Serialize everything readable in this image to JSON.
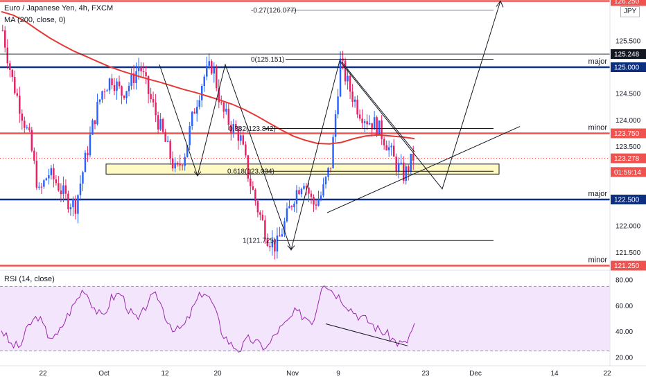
{
  "legend": {
    "symbol": "Euro / Japanese Yen, 4h, FXCM",
    "ma": "MA (200, close, 0)",
    "rsi": "RSI (14, close)",
    "currency_badge": "JPY"
  },
  "colors": {
    "up": "#2962ff",
    "down": "#e91e63",
    "ma": "#e53935",
    "major": "#0d2f80",
    "minor": "#ef5350",
    "rsi_line": "#9c27b0",
    "rsi_fill": "#f3e5fb",
    "support_box": "#fff9c4"
  },
  "chart_data": {
    "type": "candlestick",
    "price_axis": {
      "min": 121.0,
      "max": 126.25,
      "ticks": [
        "125.500",
        "125.000",
        "124.500",
        "124.000",
        "123.500",
        "123.000",
        "122.500",
        "122.000",
        "121.500"
      ]
    },
    "x_axis_ticks": [
      "22",
      "Oct",
      "12",
      "20",
      "Nov",
      "9",
      "23",
      "Dec",
      "14",
      "22"
    ],
    "price_tags": [
      {
        "value": "126.250",
        "color": "#ef5350"
      },
      {
        "value": "125.248",
        "color": "#131722"
      },
      {
        "value": "125.000",
        "color": "#0d2f80"
      },
      {
        "value": "123.750",
        "color": "#ef5350"
      },
      {
        "value": "123.278",
        "color": "#ef5350"
      },
      {
        "value": "01:59:14",
        "color": "#ef5350"
      },
      {
        "value": "122.500",
        "color": "#0d2f80"
      },
      {
        "value": "121.250",
        "color": "#ef5350"
      }
    ],
    "levels": [
      {
        "price": 125.0,
        "type": "major",
        "label": "major"
      },
      {
        "price": 123.75,
        "type": "minor",
        "label": "minor"
      },
      {
        "price": 122.5,
        "type": "major",
        "label": "major"
      },
      {
        "price": 121.25,
        "type": "minor",
        "label": "minor"
      },
      {
        "price": 126.25,
        "type": "minor",
        "label": ""
      }
    ],
    "fib_labels": [
      {
        "text": "-0.27(126.077)",
        "price": 126.077
      },
      {
        "text": "0(125.151)",
        "price": 125.151
      },
      {
        "text": "0.382(123.842)",
        "price": 123.842
      },
      {
        "text": "0.618(123.034)",
        "price": 123.034
      },
      {
        "text": "1(121.725)",
        "price": 121.725
      }
    ],
    "ma_series": [
      126.05,
      125.98,
      125.86,
      125.7,
      125.55,
      125.42,
      125.3,
      125.2,
      125.1,
      125.0,
      124.92,
      124.85,
      124.78,
      124.72,
      124.65,
      124.58,
      124.52,
      124.45,
      124.38,
      124.3,
      124.2,
      124.08,
      123.95,
      123.82,
      123.7,
      123.62,
      123.56,
      123.55,
      123.58,
      123.65,
      123.7,
      123.72,
      123.7,
      123.68,
      123.65
    ],
    "price_path": [
      125.7,
      124.8,
      124.2,
      123.6,
      122.6,
      123.0,
      122.8,
      122.5,
      122.4,
      123.2,
      124.0,
      124.6,
      124.8,
      124.5,
      124.7,
      125.05,
      124.5,
      124.0,
      123.5,
      123.0,
      123.4,
      124.2,
      124.8,
      125.05,
      124.2,
      123.9,
      123.7,
      122.9,
      122.3,
      121.8,
      121.6,
      122.1,
      122.6,
      122.9,
      122.4,
      122.6,
      123.2,
      125.1,
      124.6,
      124.2,
      124.0,
      123.9,
      123.6,
      123.2,
      122.95,
      123.3
    ],
    "rsi_axis": {
      "ticks": [
        "80.00",
        "60.00",
        "40.00",
        "20.00"
      ],
      "min": 15,
      "max": 85
    },
    "rsi_series": [
      42,
      30,
      28,
      45,
      52,
      38,
      35,
      50,
      62,
      74,
      60,
      50,
      66,
      70,
      55,
      48,
      64,
      68,
      50,
      40,
      45,
      60,
      72,
      62,
      40,
      30,
      26,
      35,
      30,
      28,
      40,
      46,
      55,
      52,
      48,
      80,
      72,
      66,
      58,
      52,
      48,
      42,
      38,
      32,
      30,
      45
    ]
  }
}
